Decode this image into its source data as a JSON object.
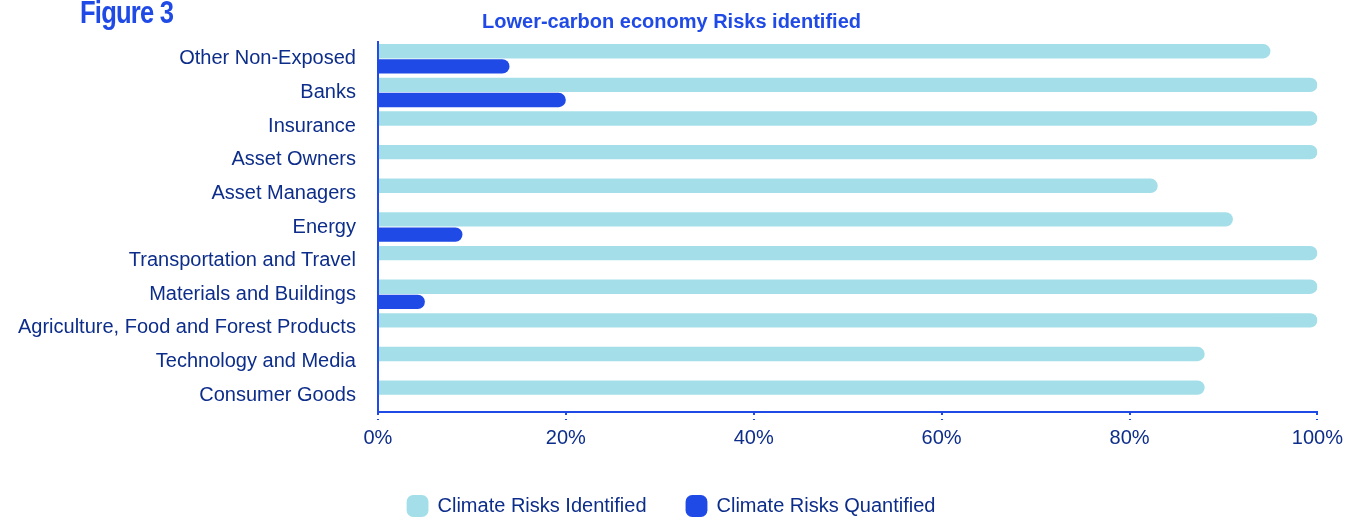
{
  "chart_data": {
    "type": "bar",
    "orientation": "horizontal",
    "title": "Figure 3",
    "subtitle": "Lower-carbon economy Risks identified",
    "categories": [
      "Other Non-Exposed",
      "Banks",
      "Insurance",
      "Asset Owners",
      "Asset Managers",
      "Energy",
      "Transportation and Travel",
      "Materials and Buildings",
      "Agriculture, Food and Forest Products",
      "Technology and Media",
      "Consumer Goods"
    ],
    "series": [
      {
        "name": "Climate Risks Identified",
        "color": "#a4dfe9",
        "values": [
          95,
          100,
          100,
          100,
          83,
          91,
          100,
          100,
          100,
          88,
          88
        ]
      },
      {
        "name": "Climate Risks Quantified",
        "color": "#1f4ae6",
        "values": [
          14,
          20,
          0,
          0,
          0,
          9,
          0,
          5,
          0,
          0,
          0
        ]
      }
    ],
    "xlim": [
      0,
      100
    ],
    "xticks": [
      {
        "value": 0,
        "label": "0%"
      },
      {
        "value": 20,
        "label": "20%"
      },
      {
        "value": 40,
        "label": "40%"
      },
      {
        "value": 60,
        "label": "60%"
      },
      {
        "value": 80,
        "label": "80%"
      },
      {
        "value": 100,
        "label": "100%"
      }
    ],
    "grid": false,
    "legend": "bottom"
  }
}
